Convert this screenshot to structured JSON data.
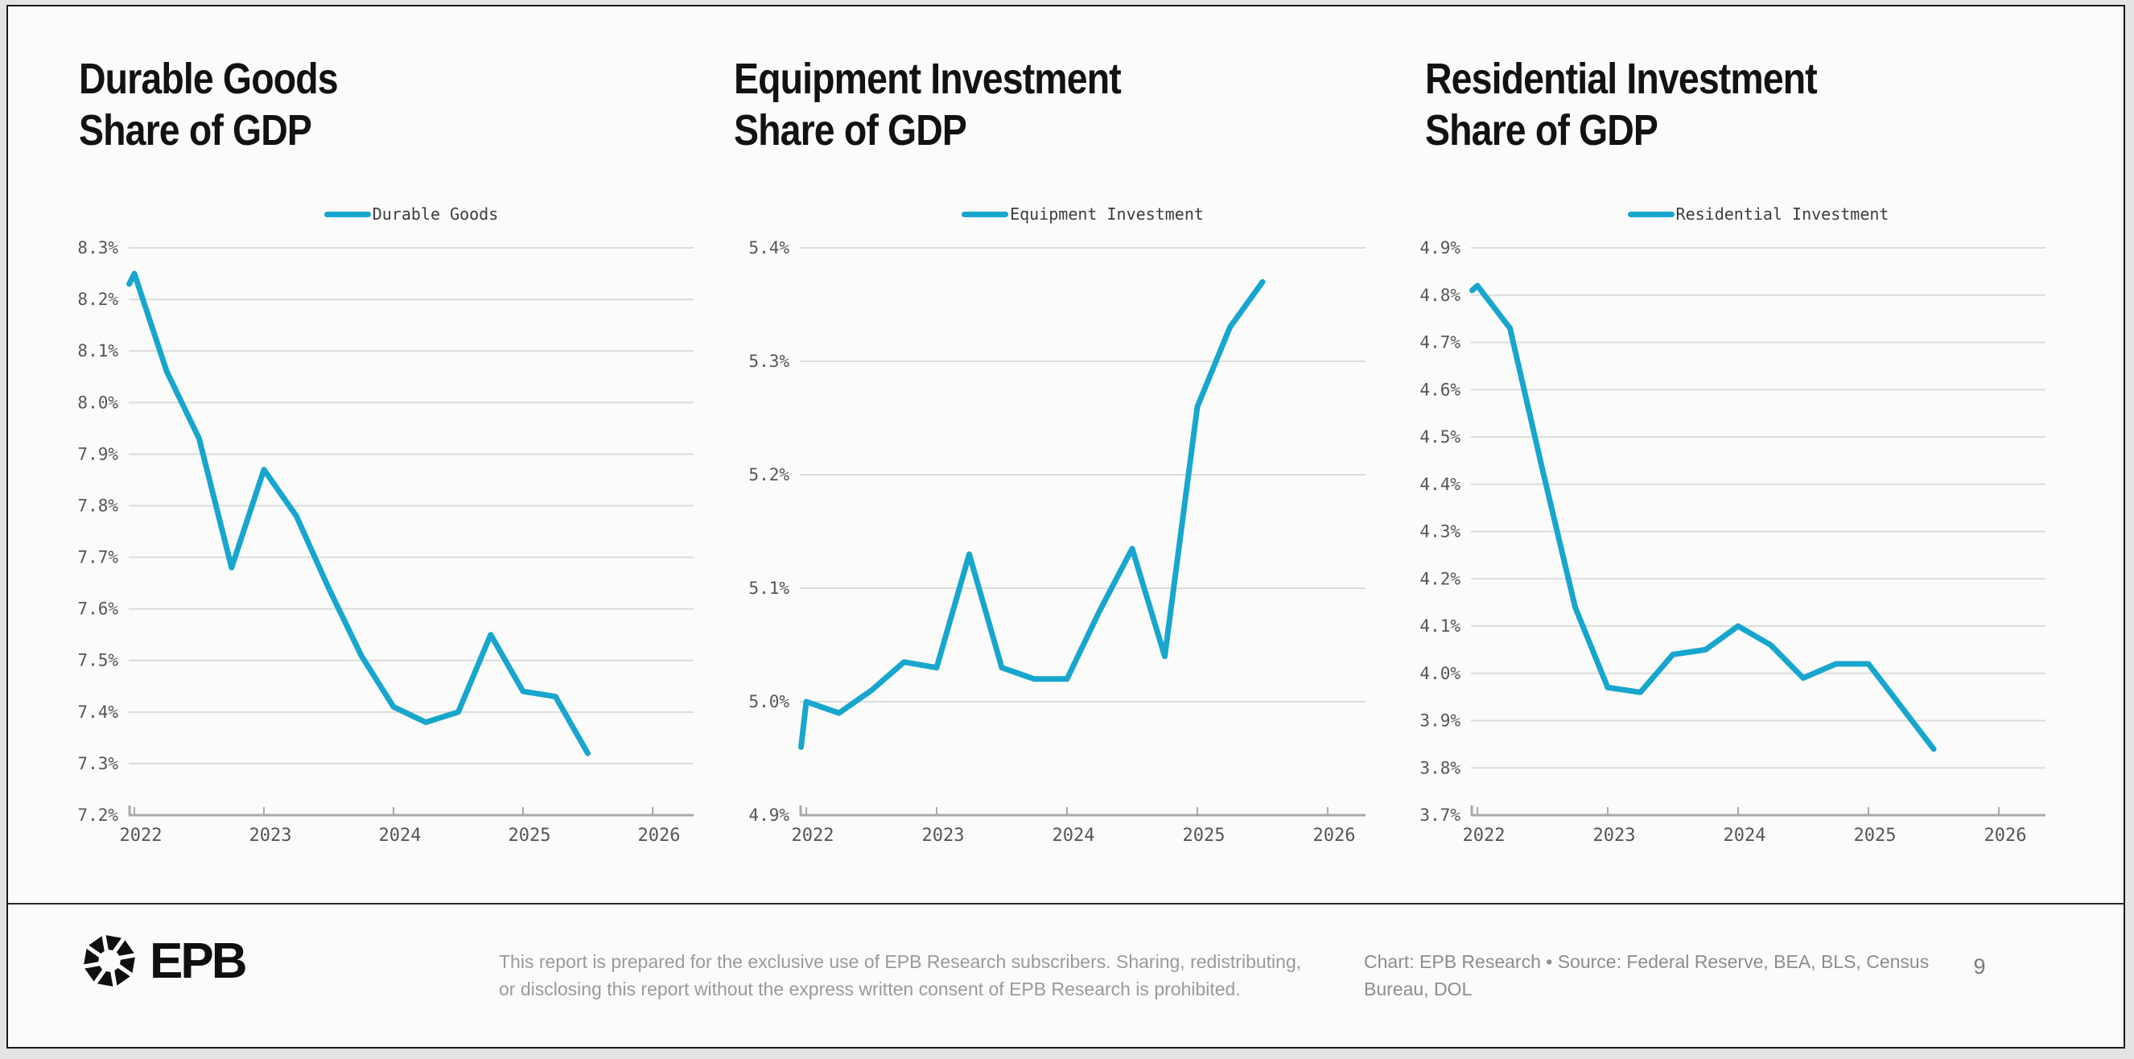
{
  "colors": {
    "accent": "#17a6cd",
    "grid": "#dcdcda",
    "axis": "#a9a9a7",
    "tick_text": "#565656",
    "legend_text": "#3d3d3d",
    "title": "#121212",
    "slide_bg": "#fbfbf9",
    "outer_bg": "#e4e4e2",
    "border": "#1a1a1a"
  },
  "chart_data": [
    {
      "type": "line",
      "title_line1": "Durable Goods",
      "title_line2": "Share of GDP",
      "legend": "Durable Goods",
      "ylabel": "",
      "xlabel": "",
      "ylim": [
        7.2,
        8.3
      ],
      "xlim": [
        2021.96,
        2026.35
      ],
      "grid": true,
      "legend_position": "top-center",
      "y_tick_labels": [
        "8.3%",
        "8.2%",
        "8.1%",
        "8.0%",
        "7.9%",
        "7.8%",
        "7.7%",
        "7.6%",
        "7.5%",
        "7.4%",
        "7.3%",
        "7.2%"
      ],
      "y_tick_values": [
        8.3,
        8.2,
        8.1,
        8.0,
        7.9,
        7.8,
        7.7,
        7.6,
        7.5,
        7.4,
        7.3,
        7.2
      ],
      "x_tick_labels": [
        "2022",
        "2023",
        "2024",
        "2025",
        "2026"
      ],
      "x_tick_values": [
        2022,
        2023,
        2024,
        2025,
        2026
      ],
      "series": [
        {
          "name": "Durable Goods",
          "x": [
            2021.96,
            2022.0,
            2022.25,
            2022.5,
            2022.75,
            2023.0,
            2023.25,
            2023.5,
            2023.75,
            2024.0,
            2024.25,
            2024.5,
            2024.75,
            2025.0,
            2025.25,
            2025.5
          ],
          "values": [
            8.23,
            8.25,
            8.06,
            7.93,
            7.68,
            7.87,
            7.78,
            7.64,
            7.51,
            7.41,
            7.38,
            7.4,
            7.55,
            7.44,
            7.43,
            7.32
          ]
        }
      ]
    },
    {
      "type": "line",
      "title_line1": "Equipment Investment",
      "title_line2": "Share of GDP",
      "legend": "Equipment Investment",
      "ylabel": "",
      "xlabel": "",
      "ylim": [
        4.9,
        5.4
      ],
      "xlim": [
        2021.96,
        2026.35
      ],
      "grid": true,
      "legend_position": "top-center",
      "y_tick_labels": [
        "5.4%",
        "5.3%",
        "5.2%",
        "5.1%",
        "5.0%",
        "4.9%"
      ],
      "y_tick_values": [
        5.4,
        5.3,
        5.2,
        5.1,
        5.0,
        4.9
      ],
      "x_tick_labels": [
        "2022",
        "2023",
        "2024",
        "2025",
        "2026"
      ],
      "x_tick_values": [
        2022,
        2023,
        2024,
        2025,
        2026
      ],
      "series": [
        {
          "name": "Equipment Investment",
          "x": [
            2021.96,
            2022.0,
            2022.25,
            2022.5,
            2022.75,
            2023.0,
            2023.25,
            2023.5,
            2023.75,
            2024.0,
            2024.25,
            2024.5,
            2024.75,
            2025.0,
            2025.25,
            2025.5
          ],
          "values": [
            4.96,
            5.0,
            4.99,
            5.01,
            5.035,
            5.03,
            5.13,
            5.03,
            5.02,
            5.02,
            5.08,
            5.135,
            5.04,
            5.26,
            5.33,
            5.37
          ]
        }
      ]
    },
    {
      "type": "line",
      "title_line1": "Residential Investment",
      "title_line2": "Share of GDP",
      "legend": "Residential Investment",
      "ylabel": "",
      "xlabel": "",
      "ylim": [
        3.7,
        4.9
      ],
      "xlim": [
        2021.96,
        2026.35
      ],
      "grid": true,
      "legend_position": "top-center",
      "y_tick_labels": [
        "4.9%",
        "4.8%",
        "4.7%",
        "4.6%",
        "4.5%",
        "4.4%",
        "4.3%",
        "4.2%",
        "4.1%",
        "4.0%",
        "3.9%",
        "3.8%",
        "3.7%"
      ],
      "y_tick_values": [
        4.9,
        4.8,
        4.7,
        4.6,
        4.5,
        4.4,
        4.3,
        4.2,
        4.1,
        4.0,
        3.9,
        3.8,
        3.7
      ],
      "x_tick_labels": [
        "2022",
        "2023",
        "2024",
        "2025",
        "2026"
      ],
      "x_tick_values": [
        2022,
        2023,
        2024,
        2025,
        2026
      ],
      "series": [
        {
          "name": "Residential Investment",
          "x": [
            2021.96,
            2022.0,
            2022.25,
            2022.5,
            2022.75,
            2023.0,
            2023.25,
            2023.5,
            2023.75,
            2024.0,
            2024.25,
            2024.5,
            2024.75,
            2025.0,
            2025.25,
            2025.5
          ],
          "values": [
            4.81,
            4.82,
            4.73,
            4.43,
            4.14,
            3.97,
            3.96,
            4.04,
            4.05,
            4.1,
            4.06,
            3.99,
            4.02,
            4.02,
            3.93,
            3.84
          ]
        }
      ]
    }
  ],
  "footer": {
    "logo_text": "EPB",
    "disclaimer_line1": "This report is prepared for the exclusive use of EPB Research subscribers. Sharing, redistributing,",
    "disclaimer_line2": "or disclosing this report without the express written consent of EPB Research is prohibited.",
    "source_line1": "Chart: EPB Research  •  Source: Federal Reserve, BEA, BLS, Census",
    "source_line2": "Bureau, DOL",
    "page_number": "9"
  }
}
